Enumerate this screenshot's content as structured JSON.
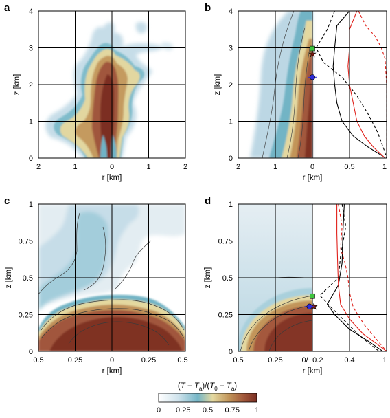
{
  "colorbar": {
    "label": "(T − Ta)/(T0 − Ta)",
    "label_parts": {
      "open": "(",
      "T": "T",
      "minus": " − ",
      "Ta": "T",
      "a": "a",
      ")/(": ")/(",
      "T0": "T",
      "zero": "0",
      "minus2": " − ",
      "Ta2": "T",
      "a2": "a",
      "close": ")"
    },
    "ticks": [
      "0",
      "0.25",
      "0.5",
      "0.75",
      "1"
    ],
    "colors": [
      "#ffffff",
      "#bcd7e4",
      "#6fb3c6",
      "#e6dca0",
      "#c49a58",
      "#a85a3e",
      "#7a2e22"
    ]
  },
  "chart_data": [
    {
      "panel": "a",
      "type": "heatmap",
      "xlabel": "r [km]",
      "ylabel": "z [km]",
      "xlim": [
        -2,
        2
      ],
      "ylim": [
        0,
        4
      ],
      "xticks": [
        "2",
        "1",
        "0",
        "1",
        "2"
      ],
      "yticks": [
        "0",
        "1",
        "2",
        "3",
        "4"
      ],
      "grid": true
    },
    {
      "panel": "b",
      "type": "line",
      "xlabel": "r [km]",
      "ylabel": "z [km]",
      "xlim": [
        -2,
        1
      ],
      "ylim": [
        0,
        4
      ],
      "xticks": [
        "2",
        "1",
        "0",
        "0.5",
        "1"
      ],
      "yticks": [
        "0",
        "1",
        "2",
        "3",
        "4"
      ],
      "grid": true,
      "markers": [
        {
          "shape": "square",
          "color": "#3ec43e",
          "x": 0,
          "y": 2.98
        },
        {
          "shape": "star",
          "color": "#7a1a12",
          "x": 0,
          "y": 2.83
        },
        {
          "shape": "circle",
          "color": "#2c2cd8",
          "x": 0,
          "y": 2.2
        }
      ],
      "series": [
        {
          "color": "#000000",
          "style": "solid",
          "points": [
            [
              0.5,
              4.0
            ],
            [
              0.33,
              3.6
            ],
            [
              0.3,
              3.0
            ],
            [
              0.28,
              2.5
            ],
            [
              0.3,
              2.0
            ],
            [
              0.33,
              1.5
            ],
            [
              0.4,
              1.0
            ],
            [
              0.55,
              0.6
            ],
            [
              0.75,
              0.3
            ],
            [
              0.95,
              0.05
            ]
          ]
        },
        {
          "color": "#000000",
          "style": "dashed",
          "points": [
            [
              0.3,
              4.0
            ],
            [
              0.2,
              3.5
            ],
            [
              0.05,
              3.0
            ],
            [
              0.15,
              2.6
            ],
            [
              0.4,
              2.2
            ],
            [
              0.6,
              1.7
            ],
            [
              0.75,
              1.2
            ],
            [
              0.88,
              0.7
            ],
            [
              0.97,
              0.2
            ],
            [
              1.0,
              0.0
            ]
          ]
        },
        {
          "color": "#e0201a",
          "style": "solid",
          "points": [
            [
              0.6,
              4.0
            ],
            [
              0.5,
              3.5
            ],
            [
              0.5,
              3.0
            ],
            [
              0.48,
              2.5
            ],
            [
              0.5,
              2.0
            ],
            [
              0.55,
              1.5
            ],
            [
              0.6,
              1.0
            ],
            [
              0.7,
              0.6
            ],
            [
              0.82,
              0.3
            ],
            [
              0.98,
              0.0
            ]
          ]
        },
        {
          "color": "#e0201a",
          "style": "dashed",
          "points": [
            [
              0.62,
              4.0
            ],
            [
              0.72,
              3.6
            ],
            [
              0.85,
              3.3
            ],
            [
              0.93,
              3.0
            ],
            [
              0.98,
              2.7
            ],
            [
              1.0,
              2.0
            ],
            [
              1.0,
              1.0
            ],
            [
              1.0,
              0.0
            ]
          ]
        }
      ]
    },
    {
      "panel": "c",
      "type": "heatmap",
      "xlabel": "r [km]",
      "ylabel": "z [km]",
      "xlim": [
        -0.5,
        0.5
      ],
      "ylim": [
        0,
        1
      ],
      "xticks": [
        "0.5",
        "0.25",
        "0",
        "0.25",
        "0.5"
      ],
      "yticks": [
        "0",
        "0.25",
        "0.5",
        "0.75",
        "1"
      ],
      "grid": true
    },
    {
      "panel": "d",
      "type": "line",
      "xlabel": "r [km]",
      "ylabel": "z [km]",
      "xlim": [
        -0.5,
        1
      ],
      "ylim": [
        0,
        1
      ],
      "xticks": [
        "0.5",
        "0.25",
        "0/−0.2",
        "0.4",
        "1"
      ],
      "yticks": [
        "0",
        "0.25",
        "0.5",
        "0.75",
        "1"
      ],
      "grid": true,
      "markers": [
        {
          "shape": "square",
          "color": "#3ec43e",
          "x": 0,
          "y": 0.375
        },
        {
          "shape": "star",
          "color": "#7a1a12",
          "x": 0.02,
          "y": 0.305
        },
        {
          "shape": "circle",
          "color": "#2c2cd8",
          "x": -0.02,
          "y": 0.305
        }
      ],
      "series": [
        {
          "color": "#000000",
          "style": "solid",
          "points": [
            [
              0.43,
              1.0
            ],
            [
              0.41,
              0.8
            ],
            [
              0.4,
              0.6
            ],
            [
              0.35,
              0.45
            ],
            [
              0.2,
              0.32
            ],
            [
              0.3,
              0.25
            ],
            [
              0.5,
              0.15
            ],
            [
              0.75,
              0.07
            ],
            [
              0.95,
              0.0
            ]
          ]
        },
        {
          "color": "#000000",
          "style": "dashed",
          "points": [
            [
              0.4,
              1.0
            ],
            [
              0.45,
              0.85
            ],
            [
              0.38,
              0.65
            ],
            [
              0.35,
              0.5
            ],
            [
              0.1,
              0.38
            ],
            [
              0.25,
              0.3
            ],
            [
              0.45,
              0.2
            ],
            [
              0.65,
              0.1
            ],
            [
              0.9,
              0.0
            ]
          ]
        },
        {
          "color": "#e0201a",
          "style": "solid",
          "points": [
            [
              0.33,
              1.0
            ],
            [
              0.33,
              0.8
            ],
            [
              0.34,
              0.6
            ],
            [
              0.35,
              0.45
            ],
            [
              0.38,
              0.32
            ],
            [
              0.5,
              0.22
            ],
            [
              0.68,
              0.12
            ],
            [
              0.87,
              0.05
            ],
            [
              1.0,
              0.0
            ]
          ]
        },
        {
          "color": "#e0201a",
          "style": "dashed",
          "points": [
            [
              0.35,
              1.0
            ],
            [
              0.4,
              0.85
            ],
            [
              0.38,
              0.7
            ],
            [
              0.44,
              0.6
            ],
            [
              0.48,
              0.5
            ],
            [
              0.5,
              0.4
            ],
            [
              0.55,
              0.3
            ],
            [
              0.7,
              0.18
            ],
            [
              0.9,
              0.06
            ],
            [
              1.0,
              0.0
            ]
          ]
        }
      ]
    }
  ]
}
